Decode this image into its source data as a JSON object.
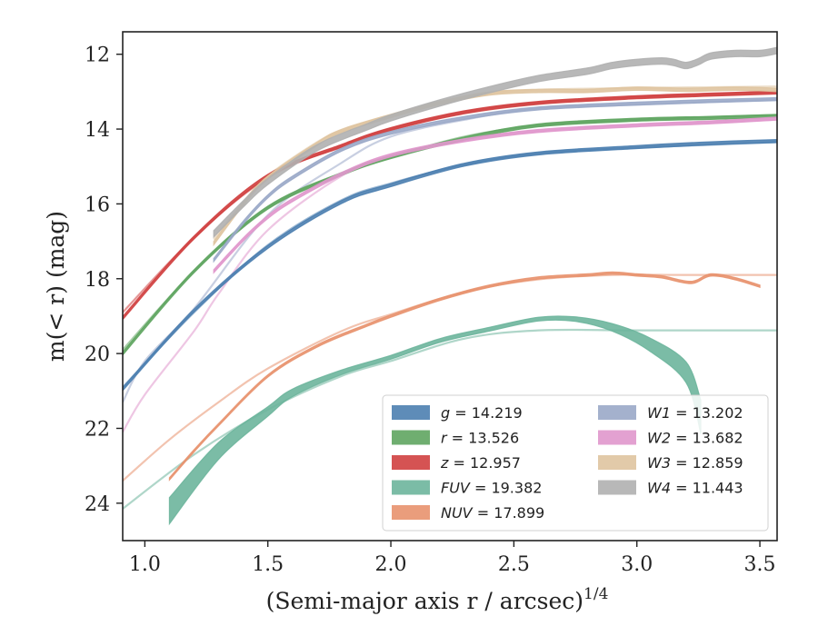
{
  "chart_data": {
    "type": "line",
    "xlabel": "(Semi-major axis r / arcsec)",
    "xlabel_exponent": "1/4",
    "ylabel": "m(< r) (mag)",
    "xlim": [
      0.91,
      3.57
    ],
    "ylim": [
      25.0,
      11.4
    ],
    "y_inverted": true,
    "xticks": [
      1.0,
      1.5,
      2.0,
      2.5,
      3.0,
      3.5
    ],
    "yticks": [
      12,
      14,
      16,
      18,
      20,
      22,
      24
    ],
    "xtick_labels": [
      "1.0",
      "1.5",
      "2.0",
      "2.5",
      "3.0",
      "3.5"
    ],
    "ytick_labels": [
      "12",
      "14",
      "16",
      "18",
      "20",
      "22",
      "24"
    ],
    "grid": false,
    "legend_position": "lower-right",
    "legend_columns": 2,
    "series": [
      {
        "name": "g = 14.219",
        "var": "g",
        "value": "14.219",
        "color": "#4c7fb0",
        "model": {
          "x": [
            0.91,
            1.2,
            1.5,
            1.8,
            2.0,
            2.3,
            2.6,
            3.0,
            3.3,
            3.57
          ],
          "y": [
            20.9,
            18.9,
            17.1,
            15.9,
            15.45,
            14.95,
            14.65,
            14.5,
            14.42,
            14.35
          ]
        },
        "data": {
          "x": [
            0.91,
            1.2,
            1.5,
            1.8,
            2.0,
            2.3,
            2.6,
            3.0,
            3.3,
            3.57
          ],
          "y": [
            20.95,
            18.85,
            17.15,
            15.95,
            15.5,
            14.95,
            14.65,
            14.48,
            14.38,
            14.32
          ]
        },
        "band": 0.08
      },
      {
        "name": "r = 13.526",
        "var": "r",
        "value": "13.526",
        "color": "#5fa560",
        "model": {
          "x": [
            0.91,
            1.2,
            1.5,
            1.8,
            2.0,
            2.3,
            2.6,
            3.0,
            3.3,
            3.57
          ],
          "y": [
            19.9,
            17.8,
            16.1,
            15.2,
            14.75,
            14.2,
            13.9,
            13.75,
            13.68,
            13.62
          ]
        },
        "data": {
          "x": [
            0.91,
            1.2,
            1.5,
            1.8,
            2.0,
            2.3,
            2.6,
            3.0,
            3.3,
            3.57
          ],
          "y": [
            20.0,
            17.8,
            16.1,
            15.2,
            14.75,
            14.25,
            13.9,
            13.75,
            13.7,
            13.65
          ]
        },
        "band": 0.08
      },
      {
        "name": "z = 12.957",
        "var": "z",
        "value": "12.957",
        "color": "#d04040",
        "model": {
          "x": [
            0.91,
            1.2,
            1.5,
            1.8,
            2.0,
            2.3,
            2.6,
            3.0,
            3.3,
            3.57
          ],
          "y": [
            18.9,
            16.9,
            15.3,
            14.45,
            14.0,
            13.55,
            13.3,
            13.15,
            13.08,
            13.0
          ]
        },
        "data": {
          "x": [
            0.91,
            1.2,
            1.5,
            1.8,
            2.0,
            2.3,
            2.6,
            3.0,
            3.3,
            3.57
          ],
          "y": [
            19.05,
            16.9,
            15.25,
            14.45,
            14.0,
            13.55,
            13.3,
            13.15,
            13.08,
            13.02
          ]
        },
        "band": 0.08
      },
      {
        "name": "FUV = 19.382",
        "var": "FUV",
        "value": "19.382",
        "color": "#6db59c",
        "model": {
          "x": [
            0.91,
            1.2,
            1.5,
            1.8,
            2.0,
            2.3,
            2.6,
            3.0,
            3.57
          ],
          "y": [
            24.15,
            22.7,
            21.5,
            20.6,
            20.2,
            19.6,
            19.38,
            19.38,
            19.38
          ]
        },
        "data": {
          "x": [
            1.1,
            1.3,
            1.5,
            1.6,
            1.8,
            2.0,
            2.2,
            2.4,
            2.6,
            2.75,
            2.9,
            3.05,
            3.2,
            3.26
          ],
          "y": [
            24.2,
            22.6,
            21.55,
            21.05,
            20.5,
            20.1,
            19.65,
            19.35,
            19.08,
            19.08,
            19.3,
            19.75,
            20.5,
            21.7
          ]
        },
        "band_by_point": [
          0.7,
          0.45,
          0.25,
          0.2,
          0.12,
          0.1,
          0.1,
          0.1,
          0.1,
          0.12,
          0.2,
          0.35,
          0.55,
          0.9
        ]
      },
      {
        "name": "NUV = 17.899",
        "var": "NUV",
        "value": "17.899",
        "color": "#e8926e",
        "model": {
          "x": [
            0.91,
            1.1,
            1.3,
            1.5,
            1.8,
            2.0,
            2.3,
            2.6,
            2.9,
            3.2,
            3.57
          ],
          "y": [
            23.4,
            22.3,
            21.3,
            20.4,
            19.4,
            18.95,
            18.35,
            18.02,
            17.9,
            17.9,
            17.9
          ]
        },
        "data": {
          "x": [
            1.1,
            1.2,
            1.3,
            1.5,
            1.7,
            1.9,
            2.0,
            2.2,
            2.4,
            2.6,
            2.8,
            2.9,
            3.0,
            3.1,
            3.22,
            3.3,
            3.4,
            3.5
          ],
          "y": [
            23.35,
            22.6,
            21.9,
            20.6,
            19.8,
            19.25,
            19.0,
            18.55,
            18.2,
            17.98,
            17.9,
            17.85,
            17.9,
            17.95,
            18.1,
            17.9,
            18.0,
            18.2
          ]
        },
        "band": 0.06
      },
      {
        "name": "W1 = 13.202",
        "var": "W1",
        "value": "13.202",
        "color": "#9aa8c8",
        "model": {
          "x": [
            0.91,
            1.0,
            1.2,
            1.5,
            1.8,
            2.0,
            2.3,
            2.6,
            3.0,
            3.3,
            3.57
          ],
          "y": [
            21.3,
            20.2,
            18.8,
            16.3,
            14.9,
            14.2,
            13.75,
            13.45,
            13.35,
            13.28,
            13.22
          ]
        },
        "data": {
          "x": [
            1.28,
            1.4,
            1.5,
            1.6,
            1.8,
            2.0,
            2.3,
            2.6,
            3.0,
            3.3,
            3.57
          ],
          "y": [
            17.5,
            16.5,
            15.8,
            15.3,
            14.55,
            14.1,
            13.7,
            13.45,
            13.32,
            13.25,
            13.2
          ]
        },
        "band": 0.08
      },
      {
        "name": "W2 = 13.682",
        "var": "W2",
        "value": "13.682",
        "color": "#e097cc",
        "model": {
          "x": [
            0.91,
            1.0,
            1.2,
            1.3,
            1.5,
            1.8,
            2.0,
            2.3,
            2.6,
            3.0,
            3.3,
            3.57
          ],
          "y": [
            22.1,
            21.1,
            19.4,
            18.4,
            16.7,
            15.25,
            14.75,
            14.3,
            14.05,
            13.9,
            13.82,
            13.75
          ]
        },
        "data": {
          "x": [
            1.28,
            1.4,
            1.5,
            1.6,
            1.8,
            2.0,
            2.3,
            2.6,
            3.0,
            3.3,
            3.57
          ],
          "y": [
            17.8,
            16.95,
            16.35,
            15.9,
            15.2,
            14.7,
            14.3,
            14.05,
            13.9,
            13.82,
            13.72
          ]
        },
        "band": 0.08
      },
      {
        "name": "W3 = 12.859",
        "var": "W3",
        "value": "12.859",
        "color": "#dfc4a0",
        "model": {
          "x": [
            1.28,
            1.4,
            1.5,
            1.7,
            1.8,
            2.0,
            2.2,
            2.4,
            2.6,
            3.0,
            3.3,
            3.57
          ],
          "y": [
            16.95,
            15.95,
            15.25,
            14.35,
            14.05,
            13.62,
            13.3,
            13.05,
            12.95,
            12.9,
            12.88,
            12.86
          ]
        },
        "data": {
          "x": [
            1.28,
            1.4,
            1.5,
            1.7,
            1.8,
            2.0,
            2.2,
            2.4,
            2.6,
            2.8,
            3.0,
            3.2,
            3.4,
            3.57
          ],
          "y": [
            17.05,
            16.0,
            15.3,
            14.4,
            14.05,
            13.65,
            13.3,
            13.05,
            12.98,
            12.98,
            12.92,
            12.95,
            12.92,
            12.95
          ]
        },
        "band": 0.09
      },
      {
        "name": "W4 = 11.443",
        "var": "W4",
        "value": "11.443",
        "color": "#b0b0b0",
        "model": null,
        "data": {
          "x": [
            1.28,
            1.4,
            1.5,
            1.7,
            1.9,
            2.0,
            2.2,
            2.4,
            2.6,
            2.8,
            2.9,
            3.0,
            3.1,
            3.15,
            3.2,
            3.25,
            3.3,
            3.4,
            3.5,
            3.57
          ],
          "y": [
            16.8,
            16.0,
            15.4,
            14.5,
            13.95,
            13.7,
            13.3,
            12.95,
            12.65,
            12.45,
            12.3,
            12.22,
            12.18,
            12.22,
            12.3,
            12.2,
            12.05,
            11.98,
            11.98,
            11.9
          ]
        },
        "band": 0.17
      }
    ]
  }
}
